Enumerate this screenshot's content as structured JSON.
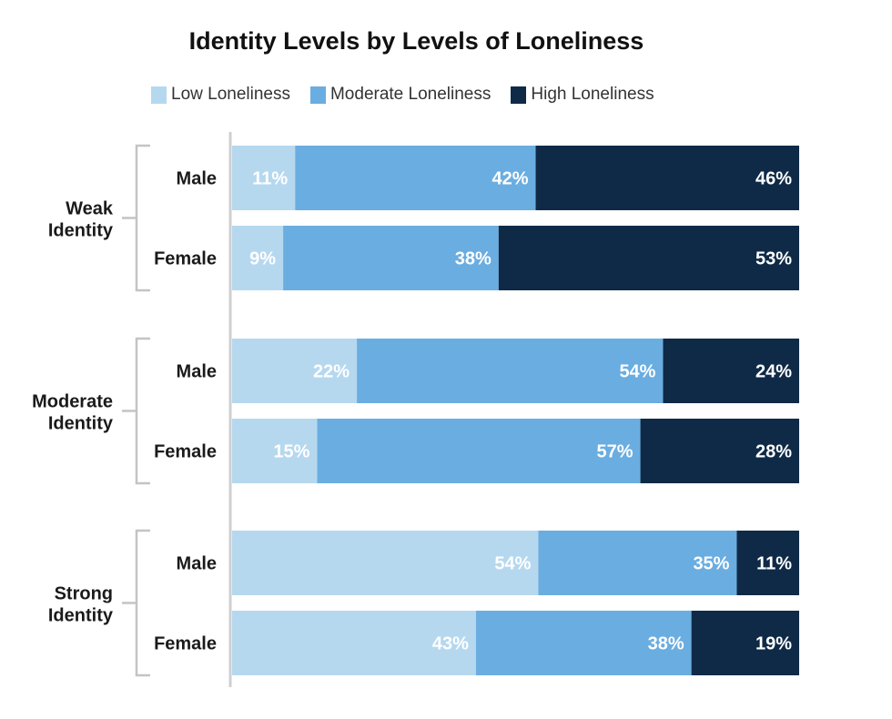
{
  "chart_data": {
    "type": "bar",
    "orientation": "horizontal",
    "stacked": true,
    "title": "Identity Levels by Levels of Loneliness",
    "legend_position": "top",
    "value_suffix": "%",
    "series": [
      {
        "name": "Low Loneliness",
        "color": "#b6d8ef",
        "label_color": "#ffffff"
      },
      {
        "name": "Moderate Loneliness",
        "color": "#6aade1",
        "label_color": "#ffffff"
      },
      {
        "name": "High Loneliness",
        "color": "#0f2a47",
        "label_color": "#ffffff"
      }
    ],
    "groups": [
      {
        "label": [
          "Weak",
          "Identity"
        ],
        "bars": [
          {
            "label": "Male",
            "values": [
              11,
              42,
              46
            ]
          },
          {
            "label": "Female",
            "values": [
              9,
              38,
              53
            ]
          }
        ]
      },
      {
        "label": [
          "Moderate",
          "Identity"
        ],
        "bars": [
          {
            "label": "Male",
            "values": [
              22,
              54,
              24
            ]
          },
          {
            "label": "Female",
            "values": [
              15,
              57,
              28
            ]
          }
        ]
      },
      {
        "label": [
          "Strong",
          "Identity"
        ],
        "bars": [
          {
            "label": "Male",
            "values": [
              54,
              35,
              11
            ]
          },
          {
            "label": "Female",
            "values": [
              43,
              38,
              19
            ]
          }
        ]
      }
    ]
  }
}
